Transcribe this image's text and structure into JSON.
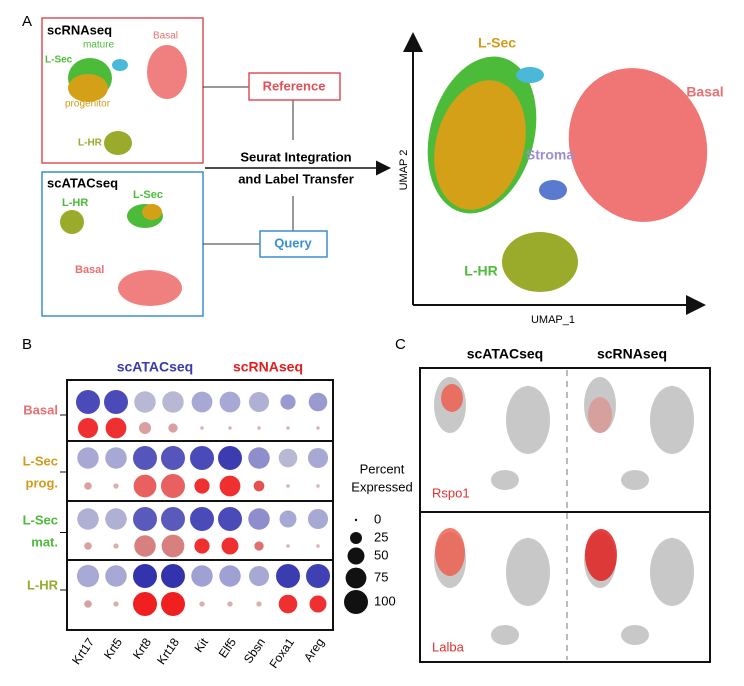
{
  "panel_a": {
    "label": "A",
    "reference": {
      "title": "scRNAseq",
      "mature": "mature",
      "basal": "Basal",
      "lsec": "L-Sec",
      "progenitor": "progenitor",
      "lhr": "L-HR",
      "tag": "Reference"
    },
    "query": {
      "title": "scATACseq",
      "lhr": "L-HR",
      "lsec": "L-Sec",
      "basal": "Basal",
      "tag": "Query"
    },
    "arrow_label": [
      "Seurat Integration",
      "and Label Transfer"
    ],
    "umap": {
      "lsec": "L-Sec",
      "basal": "Basal",
      "stroma": "Stroma",
      "lhr": "L-HR",
      "x_axis": "UMAP_1",
      "y_axis": "UMAP 2"
    }
  },
  "panel_b": {
    "label": "B",
    "group_labels": [
      "scATACseq",
      "scRNAseq"
    ],
    "rows": [
      [
        "Basal"
      ],
      [
        "L-Sec",
        "prog."
      ],
      [
        "L-Sec",
        "mat."
      ],
      [
        "L-HR"
      ]
    ],
    "row_colors": [
      "#ec6f6f",
      "#d49a1a",
      "#4dbb3a",
      "#9aaa2a"
    ],
    "genes": [
      "Krt17",
      "Krt5",
      "Krt8",
      "Krt18",
      "Kit",
      "Elf5",
      "Sbsn",
      "Foxa1",
      "Areg"
    ],
    "atac_pct": [
      [
        100,
        100,
        80,
        80,
        75,
        75,
        70,
        40,
        60
      ],
      [
        80,
        80,
        100,
        100,
        100,
        100,
        80,
        60,
        70
      ],
      [
        80,
        80,
        100,
        100,
        100,
        100,
        80,
        50,
        70
      ],
      [
        85,
        80,
        100,
        100,
        80,
        80,
        70,
        100,
        100
      ]
    ],
    "atac_colors": [
      [
        "#4a4ab8",
        "#4a4ab8",
        "#b8b8d4",
        "#b8b8d4",
        "#a8a8d4",
        "#a8a8d4",
        "#b0b0d4",
        "#9a9ad0",
        "#9a9ad0"
      ],
      [
        "#a8a8d4",
        "#a8a8d4",
        "#5555bb",
        "#5555bb",
        "#4a4ab8",
        "#3c3cb0",
        "#8e8ecc",
        "#b8b8d4",
        "#a8a8d4"
      ],
      [
        "#b0b0d4",
        "#b0b0d4",
        "#5a5abd",
        "#5a5abd",
        "#4a4ab8",
        "#4a4ab8",
        "#8e8ecc",
        "#a8a8d4",
        "#a8a8d4"
      ],
      [
        "#a8a8d4",
        "#a8a8d4",
        "#3333ad",
        "#3333ad",
        "#a0a0d2",
        "#a0a0d2",
        "#a8a8d4",
        "#3c3cb0",
        "#4040b2"
      ]
    ],
    "rna_pct": [
      [
        70,
        75,
        25,
        15,
        2,
        2,
        2,
        2,
        2
      ],
      [
        10,
        5,
        90,
        100,
        40,
        75,
        20,
        2,
        2
      ],
      [
        10,
        5,
        80,
        90,
        40,
        50,
        15,
        2,
        2
      ],
      [
        10,
        5,
        100,
        100,
        5,
        5,
        5,
        60,
        50
      ]
    ],
    "rna_colors": [
      [
        "#f03030",
        "#f03030",
        "#d8a0a0",
        "#d8a0a0",
        "#d8b0b0",
        "#d8b0b0",
        "#d8b0b0",
        "#d8b0b0",
        "#d8b0b0"
      ],
      [
        "#d8a0a0",
        "#d8b0b0",
        "#e86060",
        "#e86060",
        "#f03030",
        "#f03030",
        "#e85050",
        "#d8b0b0",
        "#d8b0b0"
      ],
      [
        "#d8a0a0",
        "#d8b0b0",
        "#d88080",
        "#d88080",
        "#f03030",
        "#f03030",
        "#e07070",
        "#d8b0b0",
        "#d8b0b0"
      ],
      [
        "#d8a0a0",
        "#d8b0b0",
        "#f02020",
        "#f02020",
        "#d8b0b0",
        "#d8b0b0",
        "#d8b0b0",
        "#f03030",
        "#f03030"
      ]
    ],
    "legend_title": [
      "Percent",
      "Expressed"
    ],
    "legend_sizes": [
      0,
      25,
      50,
      75,
      100
    ]
  },
  "panel_c": {
    "label": "C",
    "columns": [
      "scATACseq",
      "scRNAseq"
    ],
    "genes": [
      "Rspo1",
      "Lalba"
    ]
  }
}
